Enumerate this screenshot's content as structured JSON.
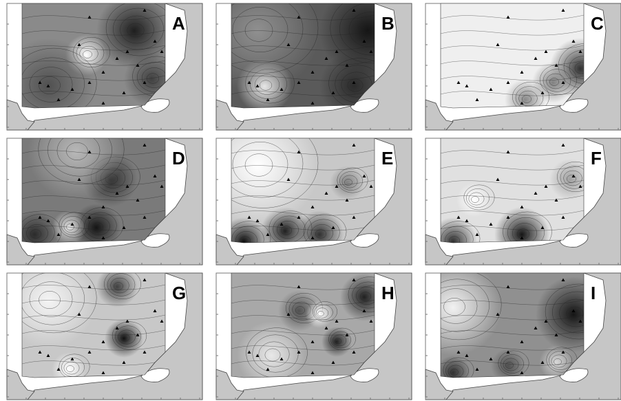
{
  "panels": [
    {
      "label": "A"
    },
    {
      "label": "B"
    },
    {
      "label": "C"
    },
    {
      "label": "D"
    },
    {
      "label": "E"
    },
    {
      "label": "F"
    },
    {
      "label": "G"
    },
    {
      "label": "H"
    },
    {
      "label": "I"
    }
  ]
}
